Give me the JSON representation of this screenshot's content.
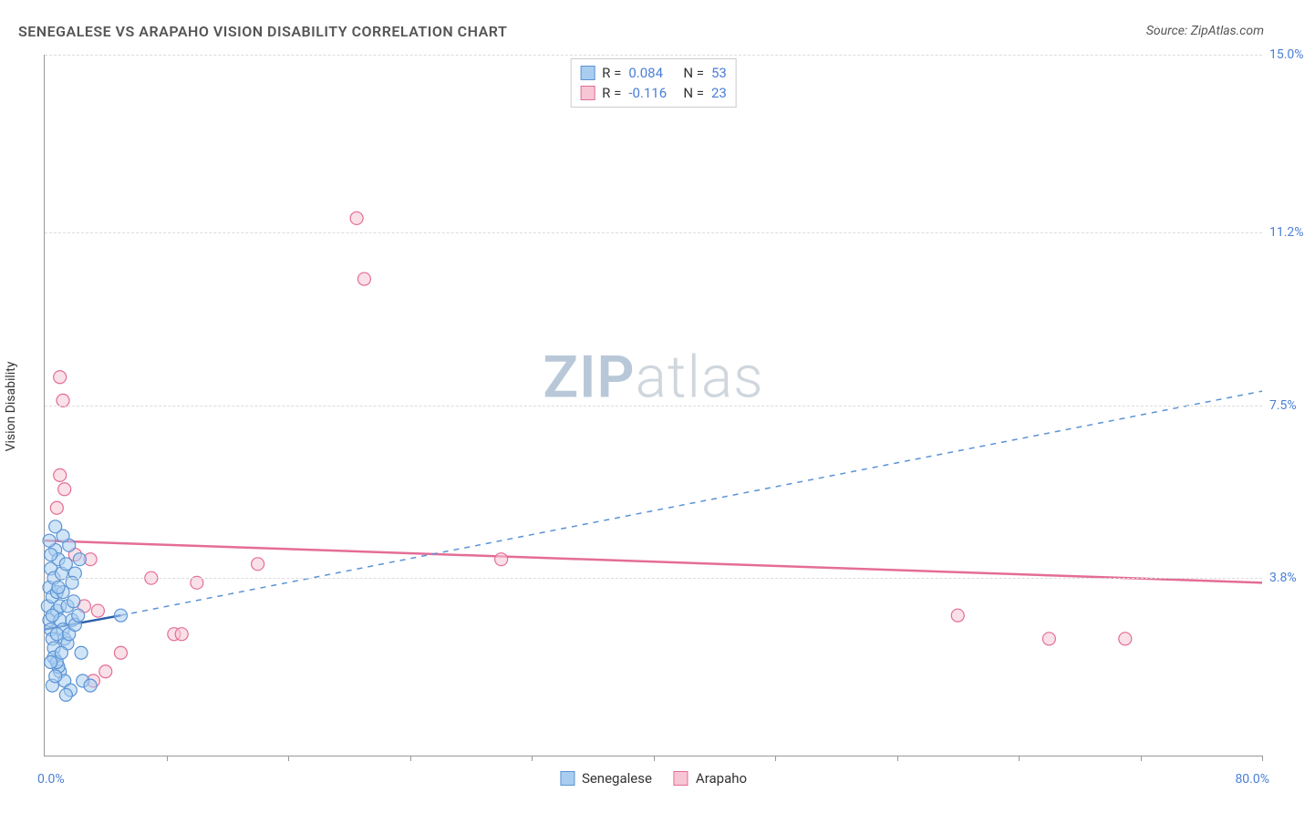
{
  "title": "SENEGALESE VS ARAPAHO VISION DISABILITY CORRELATION CHART",
  "source": "Source: ZipAtlas.com",
  "ylabel": "Vision Disability",
  "watermark_zip": "ZIP",
  "watermark_rest": "atlas",
  "chart": {
    "type": "scatter",
    "background_color": "#ffffff",
    "grid_color": "#dcdcdc",
    "axis_color": "#999999",
    "xlim": [
      0,
      80
    ],
    "ylim": [
      0,
      15
    ],
    "x_axis_left_label": "0.0%",
    "x_axis_right_label": "80.0%",
    "y_ticks": [
      {
        "value": 3.8,
        "label": "3.8%"
      },
      {
        "value": 7.5,
        "label": "7.5%"
      },
      {
        "value": 11.2,
        "label": "11.2%"
      },
      {
        "value": 15.0,
        "label": "15.0%"
      }
    ],
    "x_tick_positions_pct": [
      10,
      20,
      30,
      40,
      50,
      60,
      70,
      80,
      90,
      100
    ],
    "label_color": "#4a7fd6",
    "title_fontsize": 16,
    "label_fontsize": 14,
    "axis_label_fontsize": 14
  },
  "series": {
    "senegalese": {
      "label": "Senegalese",
      "fill_color": "#a9cdf0",
      "stroke_color": "#5b93d4",
      "R_label": "R =",
      "R_value": "0.084",
      "N_label": "N =",
      "N_value": "53",
      "trend": {
        "x1": 0,
        "y1": 2.7,
        "x2": 5.0,
        "y2": 3.0,
        "extrap_x2": 80,
        "extrap_y2": 7.8,
        "line_width_solid": 2.5,
        "line_width_dash": 1.5,
        "dash": "6 6"
      },
      "points": [
        {
          "x": 0.2,
          "y": 3.2
        },
        {
          "x": 0.3,
          "y": 2.9
        },
        {
          "x": 0.4,
          "y": 2.7
        },
        {
          "x": 0.5,
          "y": 2.5
        },
        {
          "x": 0.6,
          "y": 2.3
        },
        {
          "x": 0.3,
          "y": 3.6
        },
        {
          "x": 0.5,
          "y": 3.4
        },
        {
          "x": 0.8,
          "y": 3.1
        },
        {
          "x": 1.0,
          "y": 2.9
        },
        {
          "x": 1.2,
          "y": 2.7
        },
        {
          "x": 0.4,
          "y": 4.0
        },
        {
          "x": 0.6,
          "y": 3.8
        },
        {
          "x": 0.8,
          "y": 3.5
        },
        {
          "x": 1.0,
          "y": 3.2
        },
        {
          "x": 1.3,
          "y": 2.5
        },
        {
          "x": 0.7,
          "y": 4.4
        },
        {
          "x": 0.9,
          "y": 4.2
        },
        {
          "x": 1.2,
          "y": 3.5
        },
        {
          "x": 1.5,
          "y": 3.2
        },
        {
          "x": 1.8,
          "y": 2.9
        },
        {
          "x": 0.3,
          "y": 4.6
        },
        {
          "x": 0.4,
          "y": 4.3
        },
        {
          "x": 0.5,
          "y": 3.0
        },
        {
          "x": 0.8,
          "y": 2.6
        },
        {
          "x": 1.5,
          "y": 2.4
        },
        {
          "x": 1.0,
          "y": 1.8
        },
        {
          "x": 1.3,
          "y": 1.6
        },
        {
          "x": 1.7,
          "y": 1.4
        },
        {
          "x": 1.4,
          "y": 1.3
        },
        {
          "x": 0.9,
          "y": 1.9
        },
        {
          "x": 0.6,
          "y": 2.1
        },
        {
          "x": 0.8,
          "y": 2.0
        },
        {
          "x": 1.1,
          "y": 2.2
        },
        {
          "x": 1.6,
          "y": 2.6
        },
        {
          "x": 2.0,
          "y": 2.8
        },
        {
          "x": 2.5,
          "y": 1.6
        },
        {
          "x": 3.0,
          "y": 1.5
        },
        {
          "x": 2.2,
          "y": 3.0
        },
        {
          "x": 2.4,
          "y": 2.2
        },
        {
          "x": 1.9,
          "y": 3.3
        },
        {
          "x": 2.0,
          "y": 3.9
        },
        {
          "x": 2.3,
          "y": 4.2
        },
        {
          "x": 1.6,
          "y": 4.5
        },
        {
          "x": 1.2,
          "y": 4.7
        },
        {
          "x": 0.7,
          "y": 4.9
        },
        {
          "x": 5.0,
          "y": 3.0
        },
        {
          "x": 0.5,
          "y": 1.5
        },
        {
          "x": 0.7,
          "y": 1.7
        },
        {
          "x": 1.1,
          "y": 3.9
        },
        {
          "x": 1.4,
          "y": 4.1
        },
        {
          "x": 0.9,
          "y": 3.6
        },
        {
          "x": 1.8,
          "y": 3.7
        },
        {
          "x": 0.4,
          "y": 2.0
        }
      ]
    },
    "arapaho": {
      "label": "Arapaho",
      "fill_color": "#f6c6d4",
      "stroke_color": "#e46d97",
      "R_label": "R =",
      "R_value": "-0.116",
      "N_label": "N =",
      "N_value": "23",
      "trend": {
        "x1": 0,
        "y1": 4.6,
        "x2": 80,
        "y2": 3.7,
        "line_width": 2.5
      },
      "points": [
        {
          "x": 1.0,
          "y": 8.1
        },
        {
          "x": 1.2,
          "y": 7.6
        },
        {
          "x": 1.0,
          "y": 6.0
        },
        {
          "x": 1.3,
          "y": 5.7
        },
        {
          "x": 2.0,
          "y": 4.3
        },
        {
          "x": 2.6,
          "y": 3.2
        },
        {
          "x": 3.5,
          "y": 3.1
        },
        {
          "x": 3.0,
          "y": 4.2
        },
        {
          "x": 5.0,
          "y": 2.2
        },
        {
          "x": 7.0,
          "y": 3.8
        },
        {
          "x": 8.5,
          "y": 2.6
        },
        {
          "x": 9.0,
          "y": 2.6
        },
        {
          "x": 10.0,
          "y": 3.7
        },
        {
          "x": 14.0,
          "y": 4.1
        },
        {
          "x": 20.5,
          "y": 11.5
        },
        {
          "x": 21.0,
          "y": 10.2
        },
        {
          "x": 30.0,
          "y": 4.2
        },
        {
          "x": 60.0,
          "y": 3.0
        },
        {
          "x": 66.0,
          "y": 2.5
        },
        {
          "x": 71.0,
          "y": 2.5
        },
        {
          "x": 4.0,
          "y": 1.8
        },
        {
          "x": 3.2,
          "y": 1.6
        },
        {
          "x": 0.8,
          "y": 5.3
        }
      ]
    }
  },
  "marker": {
    "radius": 7,
    "stroke_width": 1.2,
    "fill_opacity": 0.55
  }
}
